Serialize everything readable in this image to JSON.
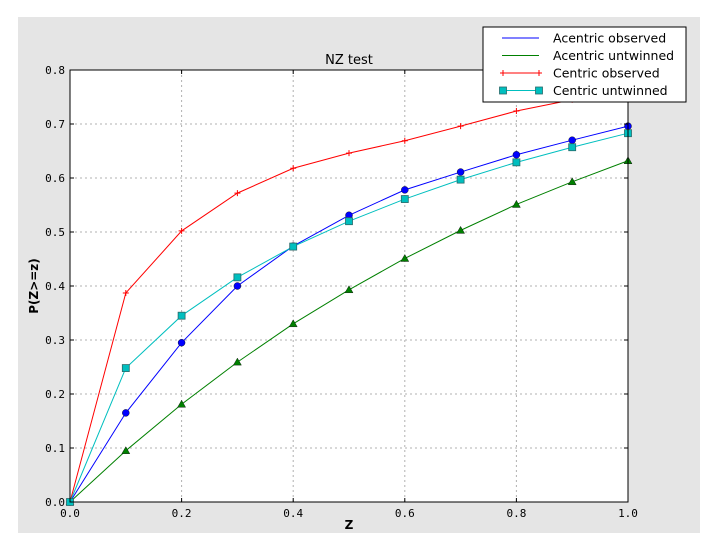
{
  "chart_data": {
    "type": "line",
    "title": "NZ test",
    "xlabel": "Z",
    "ylabel": "P(Z>=z)",
    "xlim": [
      0.0,
      1.0
    ],
    "ylim": [
      0.0,
      0.8
    ],
    "xticks": [
      "0.0",
      "0.2",
      "0.4",
      "0.6",
      "0.8",
      "1.0"
    ],
    "yticks": [
      "0.0",
      "0.1",
      "0.2",
      "0.3",
      "0.4",
      "0.5",
      "0.6",
      "0.7",
      "0.8"
    ],
    "grid": true,
    "legend_position": "top-right",
    "x": [
      0.0,
      0.1,
      0.2,
      0.3,
      0.4,
      0.5,
      0.6,
      0.7,
      0.8,
      0.9,
      1.0
    ],
    "series": [
      {
        "name": "Acentric observed",
        "color": "#0000ff",
        "marker": "circle",
        "legend_marker": "none",
        "values": [
          0.0,
          0.165,
          0.295,
          0.4,
          0.474,
          0.531,
          0.578,
          0.611,
          0.643,
          0.67,
          0.696
        ]
      },
      {
        "name": "Acentric untwinned",
        "color": "#008000",
        "marker": "triangle",
        "legend_marker": "none",
        "values": [
          0.0,
          0.095,
          0.181,
          0.259,
          0.33,
          0.393,
          0.451,
          0.503,
          0.551,
          0.593,
          0.632
        ]
      },
      {
        "name": "Centric observed",
        "color": "#ff0000",
        "marker": "plus",
        "legend_marker": "plus",
        "values": [
          0.0,
          0.387,
          0.502,
          0.572,
          0.618,
          0.646,
          0.669,
          0.696,
          0.724,
          0.745,
          0.765
        ]
      },
      {
        "name": "Centric untwinned",
        "color": "#00bfbf",
        "marker": "square",
        "legend_marker": "square",
        "values": [
          0.0,
          0.248,
          0.345,
          0.416,
          0.473,
          0.52,
          0.561,
          0.597,
          0.629,
          0.657,
          0.683
        ]
      }
    ]
  }
}
